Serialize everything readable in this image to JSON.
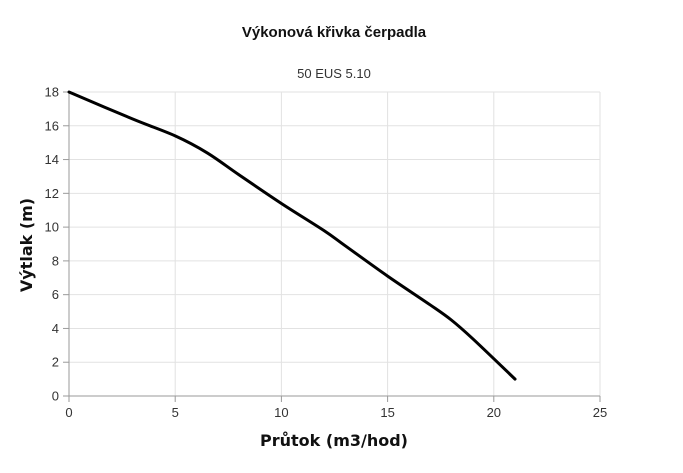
{
  "chart_data": {
    "type": "line",
    "title": "Výkonová křivka čerpadla",
    "subtitle": "50 EUS 5.10",
    "xlabel": "Průtok (m3/hod)",
    "ylabel": "Výtlak (m)",
    "xlim": [
      0,
      25
    ],
    "ylim": [
      0,
      18
    ],
    "x_ticks": [
      0,
      5,
      10,
      15,
      20,
      25
    ],
    "y_ticks": [
      0,
      2,
      4,
      6,
      8,
      10,
      12,
      14,
      16,
      18
    ],
    "x_tick_labels": [
      "0",
      "5",
      "10",
      "15",
      "20",
      "25"
    ],
    "y_tick_labels": [
      "0",
      "2",
      "4",
      "6",
      "8",
      "10",
      "12",
      "14",
      "16",
      "18"
    ],
    "grid": true,
    "legend": "none",
    "series": [
      {
        "color": "#000000",
        "x": [
          0,
          3,
          5,
          6.5,
          8,
          10,
          12,
          13,
          15,
          17,
          18,
          19,
          21
        ],
        "y": [
          18,
          16.4,
          15.4,
          14.4,
          13.1,
          11.4,
          9.8,
          8.9,
          7.1,
          5.4,
          4.5,
          3.4,
          1.0
        ]
      }
    ],
    "colors": {
      "grid": "#e2e2e2",
      "axis": "#9a9a9a",
      "line": "#000000"
    }
  }
}
